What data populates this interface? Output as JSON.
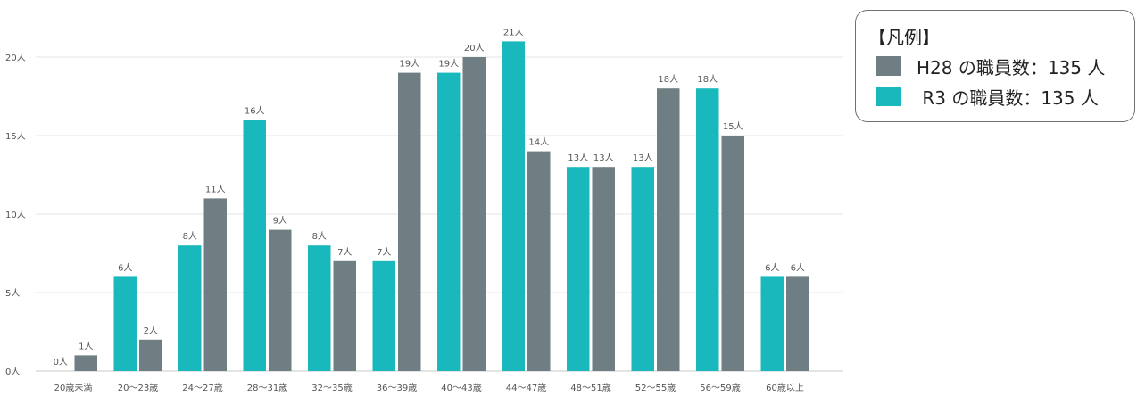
{
  "chart_data": {
    "type": "bar",
    "categories": [
      "20歳未満",
      "20～23歳",
      "24～27歳",
      "28～31歳",
      "32～35歳",
      "36～39歳",
      "40～43歳",
      "44～47歳",
      "48～51歳",
      "52～55歳",
      "56～59歳",
      "60歳以上"
    ],
    "series": [
      {
        "name": "R3 の職員数：135 人",
        "color": "#19b8bd",
        "values": [
          0,
          6,
          8,
          16,
          8,
          7,
          19,
          21,
          13,
          13,
          18,
          6
        ]
      },
      {
        "name": "H28 の職員数：135 人",
        "color": "#6e7e83",
        "values": [
          1,
          2,
          11,
          9,
          7,
          19,
          20,
          14,
          13,
          18,
          15,
          6
        ]
      }
    ],
    "value_suffix": "人",
    "yticks": [
      0,
      5,
      10,
      15,
      20
    ],
    "ylim": [
      0,
      22
    ],
    "grid": true
  },
  "legend": {
    "title": "【凡例】",
    "items": [
      {
        "label": "H28 の職員数：135 人",
        "color": "#6e7e83"
      },
      {
        "label": " R3 の職員数：135 人",
        "color": "#19b8bd"
      }
    ]
  }
}
